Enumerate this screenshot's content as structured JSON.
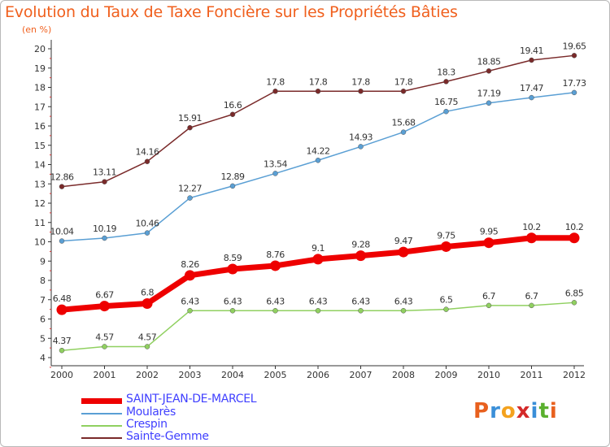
{
  "title": "Evolution du Taux de Taxe Foncière sur les Propriétés Bâties",
  "subtitle": "(en %)",
  "logo": {
    "text": "Proxiti",
    "colors": [
      "#e8601e",
      "#3a8fd8",
      "#f4a21e",
      "#d42a2a",
      "#3a8fd8",
      "#5ab02e",
      "#e8601e"
    ]
  },
  "chart_data": {
    "type": "line",
    "x": [
      "2000",
      "2001",
      "2002",
      "2003",
      "2004",
      "2005",
      "2006",
      "2007",
      "2008",
      "2009",
      "2010",
      "2011",
      "2012"
    ],
    "ylim": [
      4,
      20
    ],
    "yticks": [
      4,
      5,
      6,
      7,
      8,
      9,
      10,
      11,
      12,
      13,
      14,
      15,
      16,
      17,
      18,
      19,
      20
    ],
    "grid": false,
    "legend_position": "bottom-left",
    "series": [
      {
        "name": "SAINT-JEAN-DE-MARCEL",
        "color": "#ee0000",
        "values": [
          6.48,
          6.67,
          6.8,
          8.26,
          8.59,
          8.76,
          9.1,
          9.28,
          9.47,
          9.75,
          9.95,
          10.2,
          10.2
        ],
        "labels": [
          "6.48",
          "6.67",
          "6.8",
          "8.26",
          "8.59",
          "8.76",
          "9.1",
          "9.28",
          "9.47",
          "9.75",
          "9.95",
          "10.2",
          "10.2"
        ]
      },
      {
        "name": "Moularès",
        "color": "#5a9fd4",
        "values": [
          10.04,
          10.19,
          10.46,
          12.27,
          12.89,
          13.54,
          14.22,
          14.93,
          15.68,
          16.75,
          17.19,
          17.47,
          17.73
        ],
        "labels": [
          "10.04",
          "10.19",
          "10.46",
          "12.27",
          "12.89",
          "13.54",
          "14.22",
          "14.93",
          "15.68",
          "16.75",
          "17.19",
          "17.47",
          "17.73"
        ]
      },
      {
        "name": "Crespin",
        "color": "#90d060",
        "values": [
          4.37,
          4.57,
          4.57,
          6.43,
          6.43,
          6.43,
          6.43,
          6.43,
          6.43,
          6.5,
          6.7,
          6.7,
          6.85
        ],
        "labels": [
          "4.37",
          "4.57",
          "4.57",
          "6.43",
          "6.43",
          "6.43",
          "6.43",
          "6.43",
          "6.43",
          "6.5",
          "6.7",
          "6.7",
          "6.85"
        ]
      },
      {
        "name": "Sainte-Gemme",
        "color": "#7a2a2a",
        "values": [
          12.86,
          13.11,
          14.16,
          15.91,
          16.6,
          17.8,
          17.8,
          17.8,
          17.8,
          18.3,
          18.85,
          19.41,
          19.65
        ],
        "labels": [
          "12.86",
          "13.11",
          "14.16",
          "15.91",
          "16.6",
          "17.8",
          "17.8",
          "17.8",
          "17.8",
          "18.3",
          "18.85",
          "19.41",
          "19.65"
        ]
      }
    ]
  }
}
